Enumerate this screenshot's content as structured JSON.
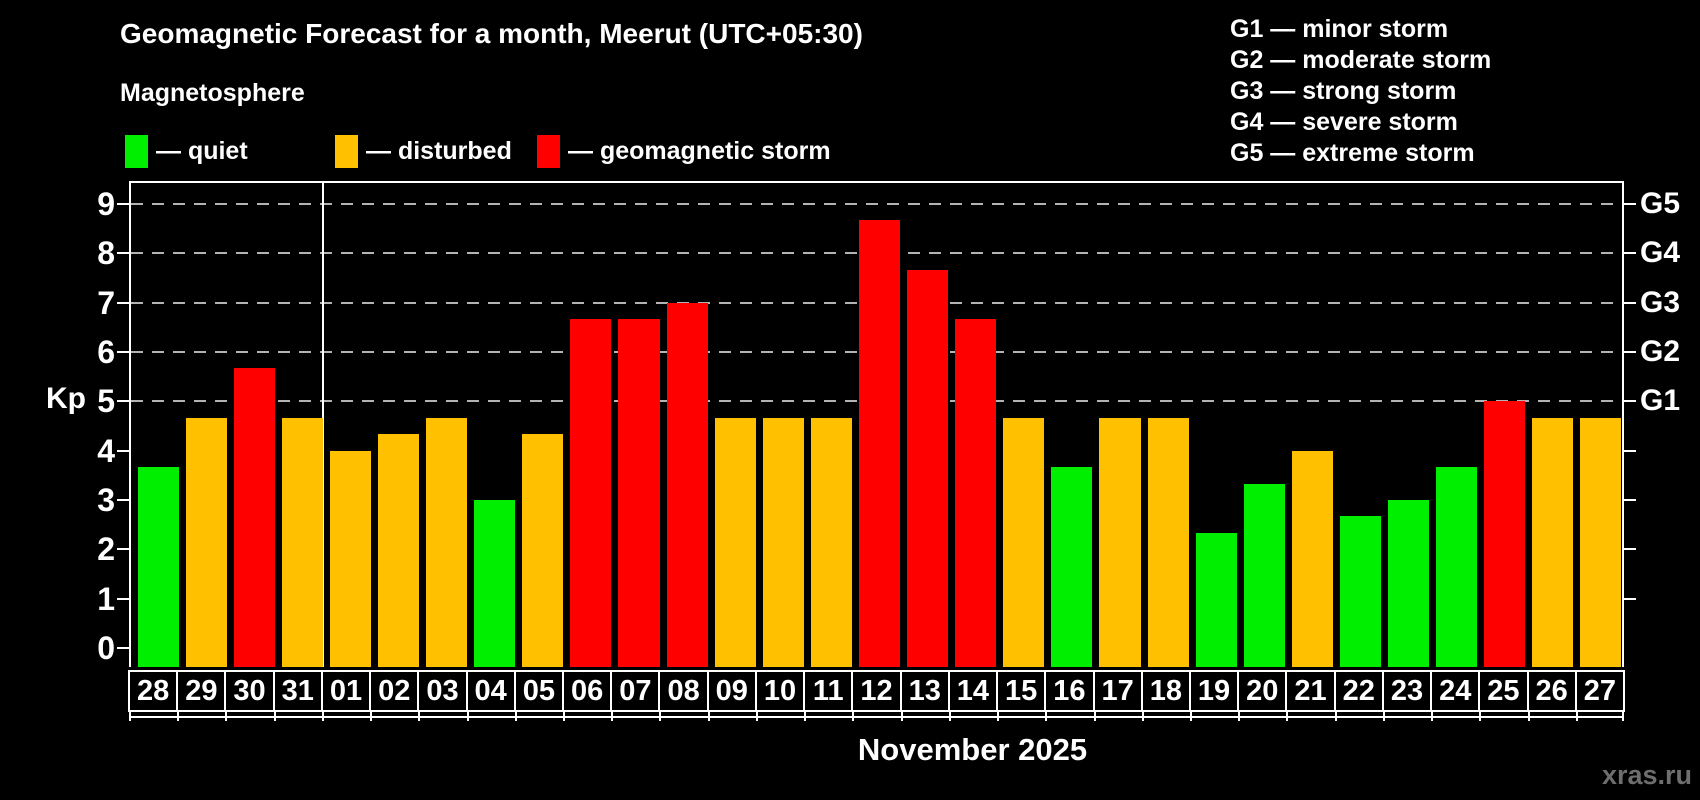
{
  "header": {
    "title": "Geomagnetic Forecast for a month, Meerut (UTC+05:30)",
    "subtitle": "Magnetosphere"
  },
  "legend": {
    "items": [
      {
        "id": "quiet",
        "label": "— quiet",
        "color": "#00ee00"
      },
      {
        "id": "disturbed",
        "label": "— disturbed",
        "color": "#ffc000"
      },
      {
        "id": "storm",
        "label": "— geomagnetic storm",
        "color": "#ff0000"
      }
    ]
  },
  "g_scale_legend": {
    "lines": [
      "G1 — minor storm",
      "G2 — moderate storm",
      "G3 — strong storm",
      "G4 — severe storm",
      "G5 — extreme storm"
    ]
  },
  "chart_data": {
    "type": "bar",
    "title": "Geomagnetic Forecast for a month, Meerut (UTC+05:30)",
    "ylabel": "Kp",
    "xlabel": "November 2025",
    "ylim": [
      0,
      9
    ],
    "yticks": [
      0,
      1,
      2,
      3,
      4,
      5,
      6,
      7,
      8,
      9
    ],
    "gridlines_at": [
      5,
      6,
      7,
      8,
      9
    ],
    "grid": "dashed horizontal lines at storm levels G1-G5",
    "legend_position": "top-left",
    "right_axis": [
      {
        "kp": 5,
        "label": "G1"
      },
      {
        "kp": 6,
        "label": "G2"
      },
      {
        "kp": 7,
        "label": "G3"
      },
      {
        "kp": 8,
        "label": "G4"
      },
      {
        "kp": 9,
        "label": "G5"
      }
    ],
    "month_separator_after_index": 3,
    "categories": [
      "28",
      "29",
      "30",
      "31",
      "01",
      "02",
      "03",
      "04",
      "05",
      "06",
      "07",
      "08",
      "09",
      "10",
      "11",
      "12",
      "13",
      "14",
      "15",
      "16",
      "17",
      "18",
      "19",
      "20",
      "21",
      "22",
      "23",
      "24",
      "25",
      "26",
      "27"
    ],
    "values": [
      3.67,
      4.67,
      5.67,
      4.67,
      4.0,
      4.33,
      4.67,
      3.0,
      4.33,
      6.67,
      6.67,
      7.0,
      4.67,
      4.67,
      4.67,
      8.67,
      7.67,
      6.67,
      4.67,
      3.67,
      4.67,
      4.67,
      2.33,
      3.33,
      4.0,
      2.67,
      3.0,
      3.67,
      5.0,
      4.67,
      4.67
    ],
    "statuses": [
      "quiet",
      "disturbed",
      "storm",
      "disturbed",
      "disturbed",
      "disturbed",
      "disturbed",
      "quiet",
      "disturbed",
      "storm",
      "storm",
      "storm",
      "disturbed",
      "disturbed",
      "disturbed",
      "storm",
      "storm",
      "storm",
      "disturbed",
      "quiet",
      "disturbed",
      "disturbed",
      "quiet",
      "quiet",
      "disturbed",
      "quiet",
      "quiet",
      "quiet",
      "storm",
      "disturbed",
      "disturbed"
    ],
    "status_colors": {
      "quiet": "#00ee00",
      "disturbed": "#ffc000",
      "storm": "#ff0000"
    }
  },
  "footer": {
    "month_label": "November 2025",
    "watermark": "xras.ru"
  }
}
